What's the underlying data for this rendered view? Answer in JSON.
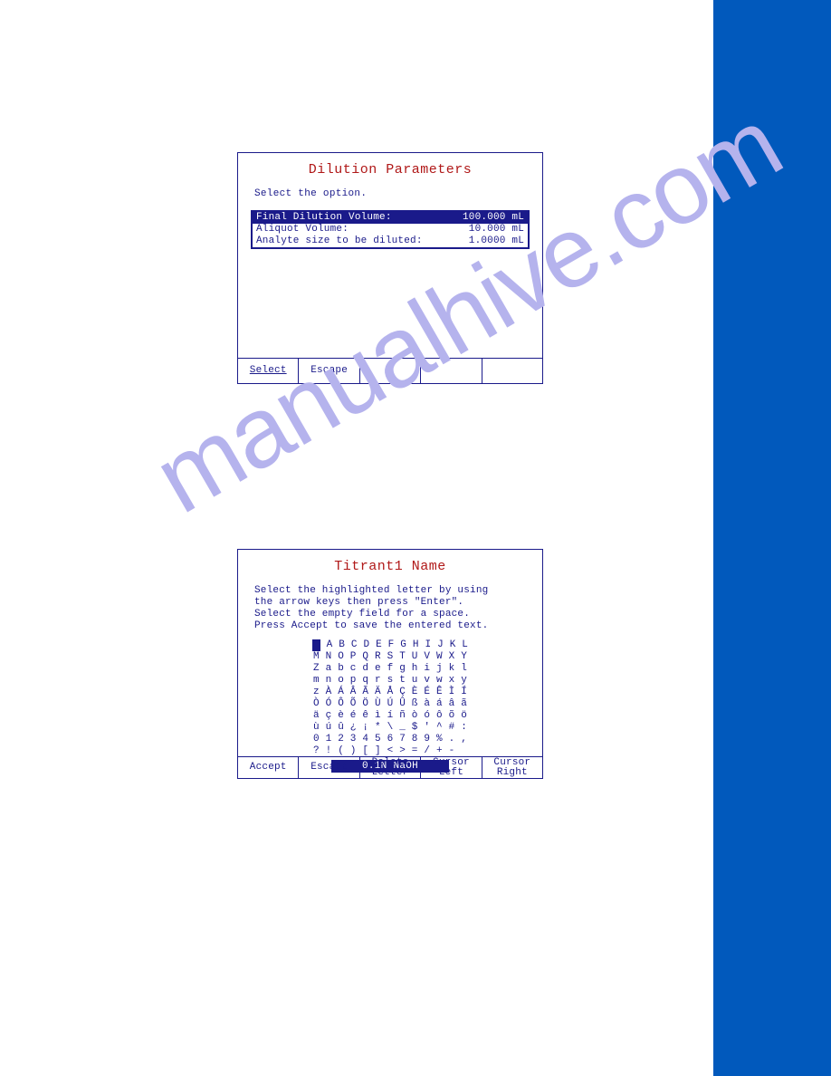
{
  "watermark_text": "manualhive.com",
  "sidebar_color": "#0159bc",
  "dialog1": {
    "title": "Dilution Parameters",
    "prompt": "Select the option.",
    "options": [
      {
        "label": "Final Dilution Volume:",
        "value": "100.000 mL",
        "highlighted": true
      },
      {
        "label": "Aliquot Volume:",
        "value": "10.000 mL",
        "highlighted": false
      },
      {
        "label": "Analyte size to be diluted:",
        "value": "1.0000 mL",
        "highlighted": false
      }
    ],
    "buttons": [
      "Select",
      "Escape",
      "",
      "",
      ""
    ]
  },
  "dialog2": {
    "title": "Titrant1 Name",
    "instructions": [
      "Select the highlighted letter by using",
      "the arrow keys then press \"Enter\".",
      "Select the empty field for a space.",
      "Press Accept to save the entered text."
    ],
    "char_rows": [
      "  A B C D E F G H I J K L",
      "M N O P Q R S T U V W X Y",
      "Z a b c d e f g h i j k l",
      "m n o p q r s t u v w x y",
      "z À Á Â Ã Ä Å Ç È É Ê Ì Í",
      "Ò Ó Ô Õ Ö Ù Ú Û ß à á â ã",
      "ä ç è é ê ì í ñ ò ó ô õ ö",
      "ù ú û ¿ ¡ * \\ _ $ ' ^ # :",
      "0 1 2 3 4 5 6 7 8 9 % . ,",
      "? ! ( ) [ ] < > = / + -  "
    ],
    "highlight_row": 0,
    "highlight_col": 1,
    "entered_text": "0.1N NaOH",
    "buttons": [
      "Accept",
      "Escape",
      "Delete\nLetter",
      "Cursor\nLeft",
      "Cursor\nRight"
    ]
  }
}
